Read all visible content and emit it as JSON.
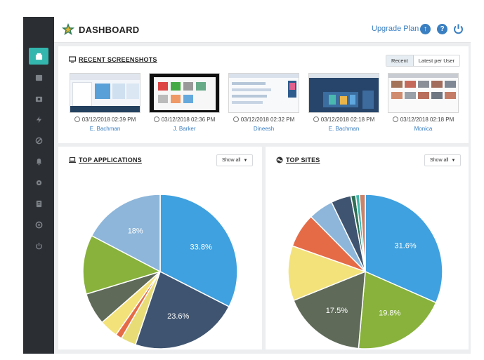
{
  "header": {
    "title": "DASHBOARD",
    "upgrade_label": "Upgrade Plan",
    "icons": [
      "upload-icon",
      "help-icon",
      "power-icon"
    ]
  },
  "sidebar": {
    "items": [
      {
        "icon": "dashboard-icon",
        "active": true
      },
      {
        "icon": "folder-icon"
      },
      {
        "icon": "camera-icon"
      },
      {
        "icon": "bolt-icon"
      },
      {
        "icon": "block-icon"
      },
      {
        "icon": "bell-icon"
      },
      {
        "icon": "settings-icon"
      },
      {
        "icon": "document-icon"
      },
      {
        "icon": "support-icon"
      },
      {
        "icon": "power-icon"
      }
    ]
  },
  "recent": {
    "title": "RECENT SCREENSHOTS",
    "tabs": [
      "Recent",
      "Latest per User"
    ],
    "active_tab": "Recent",
    "items": [
      {
        "time": "03/12/2018 02:39 PM",
        "user": "E. Bachman"
      },
      {
        "time": "03/12/2018 02:36 PM",
        "user": "J. Barker"
      },
      {
        "time": "03/12/2018 02:32 PM",
        "user": "Dineesh"
      },
      {
        "time": "03/12/2018 02:18 PM",
        "user": "E. Bachman"
      },
      {
        "time": "03/12/2018 02:18 PM",
        "user": "Monica"
      }
    ]
  },
  "apps": {
    "title": "TOP APPLICATIONS",
    "show_all": "Show all"
  },
  "sites": {
    "title": "TOP SITES",
    "show_all": "Show all"
  },
  "chart_data": [
    {
      "type": "pie",
      "title": "TOP APPLICATIONS",
      "slices": [
        {
          "value": 33.8,
          "label": "33.8%",
          "color": "#3fa1df"
        },
        {
          "value": 23.6,
          "label": "23.6%",
          "color": "#3f5470"
        },
        {
          "value": 3.3,
          "label": "",
          "color": "#e7dc76"
        },
        {
          "value": 1.4,
          "label": "",
          "color": "#e56b47"
        },
        {
          "value": 4.0,
          "label": "",
          "color": "#f3e27a"
        },
        {
          "value": 7.0,
          "label": "",
          "color": "#5f6a59"
        },
        {
          "value": 12.9,
          "label": "",
          "color": "#88b23b"
        },
        {
          "value": 18.0,
          "label": "18%",
          "color": "#8db6da"
        }
      ]
    },
    {
      "type": "pie",
      "title": "TOP SITES",
      "slices": [
        {
          "value": 31.6,
          "label": "31.6%",
          "color": "#3fa1df"
        },
        {
          "value": 19.8,
          "label": "19.8%",
          "color": "#88b23b"
        },
        {
          "value": 17.5,
          "label": "17.5%",
          "color": "#5f6a59"
        },
        {
          "value": 11.5,
          "label": "",
          "color": "#f3e27a"
        },
        {
          "value": 7.2,
          "label": "",
          "color": "#e56b47"
        },
        {
          "value": 5.2,
          "label": "",
          "color": "#8db6da"
        },
        {
          "value": 4.2,
          "label": "",
          "color": "#3f5470"
        },
        {
          "value": 1.0,
          "label": "",
          "color": "#2f6f55"
        },
        {
          "value": 0.8,
          "label": "",
          "color": "#3fb7ac"
        },
        {
          "value": 1.2,
          "label": "",
          "color": "#c9846c"
        }
      ]
    }
  ]
}
